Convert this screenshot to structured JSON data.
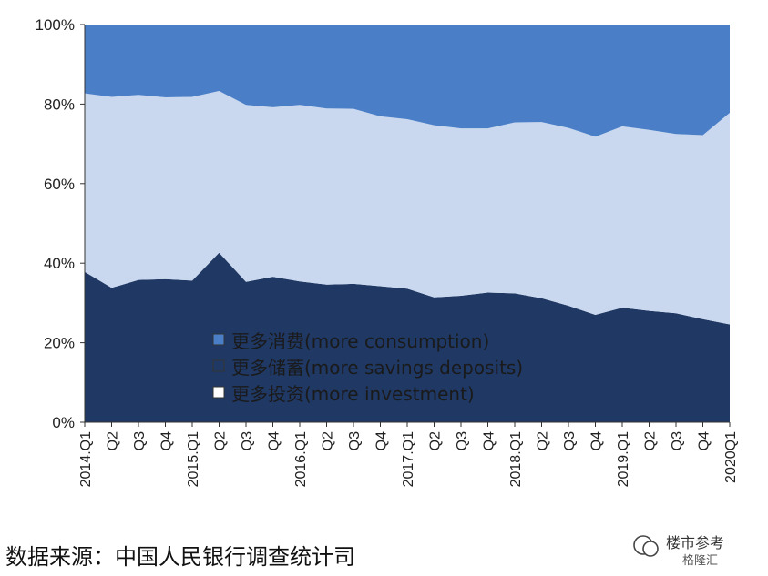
{
  "chart_data": {
    "type": "area",
    "stacked": true,
    "percent": true,
    "x": [
      "2014.Q1",
      "Q2",
      "Q3",
      "Q4",
      "2015.Q1",
      "Q2",
      "Q3",
      "Q4",
      "2016.Q1",
      "Q2",
      "Q3",
      "Q4",
      "2017.Q1",
      "Q2",
      "Q3",
      "Q4",
      "2018.Q1",
      "Q2",
      "Q3",
      "Q4",
      "2019.Q1",
      "Q2",
      "Q3",
      "Q4",
      "2020Q1"
    ],
    "series": [
      {
        "name": "更多储蓄(more savings deposits)",
        "color": "#1f3864",
        "values": [
          37.8,
          33.8,
          35.8,
          36.0,
          35.6,
          42.6,
          35.3,
          36.6,
          35.4,
          34.6,
          34.8,
          34.2,
          33.6,
          31.4,
          31.8,
          32.6,
          32.4,
          31.2,
          29.3,
          27.0,
          28.8,
          28.0,
          27.4,
          25.9,
          24.6
        ]
      },
      {
        "name": "更多投资(more investment)",
        "color": "#c9d8ee",
        "values": [
          44.9,
          48.0,
          46.5,
          45.7,
          46.2,
          40.7,
          44.5,
          42.6,
          44.4,
          44.3,
          44.0,
          42.7,
          42.6,
          43.3,
          42.1,
          41.3,
          43.0,
          44.3,
          44.7,
          44.8,
          45.6,
          45.5,
          45.1,
          46.3,
          53.2
        ]
      },
      {
        "name": "更多消费(more consumption)",
        "color": "#4a7fc8",
        "values": [
          17.3,
          18.2,
          17.7,
          18.3,
          18.2,
          16.7,
          20.2,
          20.8,
          20.2,
          21.1,
          21.2,
          23.1,
          23.8,
          25.3,
          26.1,
          26.1,
          24.6,
          24.5,
          26.0,
          28.2,
          25.6,
          26.5,
          27.5,
          27.8,
          22.2
        ]
      }
    ],
    "yticks": [
      "0%",
      "20%",
      "40%",
      "60%",
      "80%",
      "100%"
    ],
    "ylim": [
      0,
      100
    ],
    "legend": [
      {
        "marker": "■",
        "label": "更多消费(more consumption)",
        "color": "#4a7fc8"
      },
      {
        "marker": "■",
        "label": "更多储蓄(more savings deposits)",
        "color": "#1f3864"
      },
      {
        "marker": "□",
        "label": "更多投资(more investment)",
        "color": "#ffffff"
      }
    ],
    "legend_position": "bottom-center, inside plot"
  },
  "source": "数据来源：中国人民银行调查统计司",
  "watermark": {
    "name": "楼市参考",
    "sub": "格隆汇"
  }
}
